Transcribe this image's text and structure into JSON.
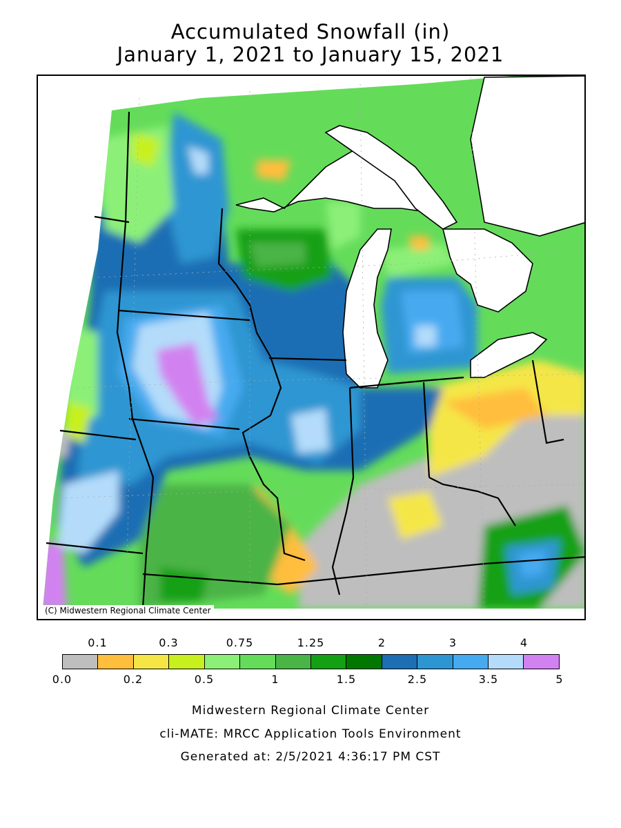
{
  "title": {
    "line1": "Accumulated Snowfall (in)",
    "line2": "January 1, 2021 to January 15, 2021"
  },
  "map": {
    "copyright": "(C) Midwestern Regional Climate Center",
    "icons": [
      "state-boundaries",
      "great-lakes"
    ]
  },
  "legend": {
    "bins": [
      {
        "lo": 0.0,
        "hi": 0.1,
        "color": "#BEBEBE"
      },
      {
        "lo": 0.1,
        "hi": 0.2,
        "color": "#FFBE3C"
      },
      {
        "lo": 0.2,
        "hi": 0.3,
        "color": "#F5E646"
      },
      {
        "lo": 0.3,
        "hi": 0.5,
        "color": "#C8F01E"
      },
      {
        "lo": 0.5,
        "hi": 0.75,
        "color": "#8CF078"
      },
      {
        "lo": 0.75,
        "hi": 1,
        "color": "#64DC5A"
      },
      {
        "lo": 1,
        "hi": 1.25,
        "color": "#4BB446"
      },
      {
        "lo": 1.25,
        "hi": 1.5,
        "color": "#14A014"
      },
      {
        "lo": 1.5,
        "hi": 2,
        "color": "#007800"
      },
      {
        "lo": 2,
        "hi": 2.5,
        "color": "#1E6EB4"
      },
      {
        "lo": 2.5,
        "hi": 3,
        "color": "#2D96D2"
      },
      {
        "lo": 3,
        "hi": 3.5,
        "color": "#46AAF0"
      },
      {
        "lo": 3.5,
        "hi": 4,
        "color": "#B4DCFA"
      },
      {
        "lo": 4,
        "hi": 5,
        "color": "#D282F0"
      }
    ],
    "top_labels": [
      "0.1",
      "0.3",
      "0.75",
      "1.25",
      "2",
      "3",
      "4"
    ],
    "bottom_labels": [
      "0.0",
      "0.2",
      "0.5",
      "1",
      "1.5",
      "2.5",
      "3.5",
      "5"
    ]
  },
  "footer": {
    "line1": "Midwestern Regional Climate Center",
    "line2": "cli-MATE: MRCC Application Tools Environment",
    "line3": "Generated at: 2/5/2021 4:36:17 PM CST"
  }
}
